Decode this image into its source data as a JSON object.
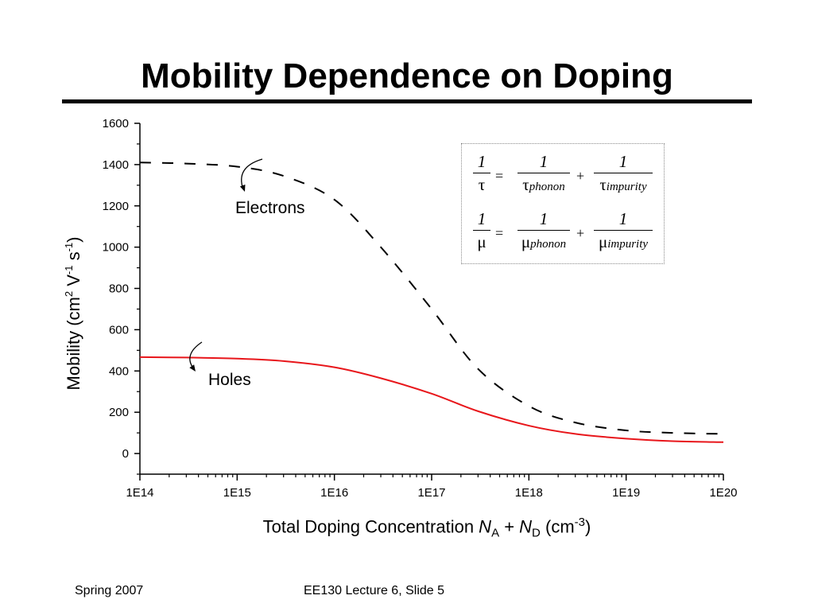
{
  "slide": {
    "title": "Mobility Dependence on Doping",
    "footer_left": "Spring 2007",
    "footer_center": "EE130 Lecture 6, Slide 5"
  },
  "annotations": {
    "electrons": "Electrons",
    "holes": "Holes"
  },
  "axis_titles": {
    "x_main": "Total Doping Concentration ",
    "x_na": "N",
    "x_na_sub": "A",
    "x_plus": " + ",
    "x_nd": "N",
    "x_nd_sub": "D",
    "x_unit": " (cm",
    "x_unit_sup": "-3",
    "x_close": ")",
    "y_main": "Mobility (cm",
    "y_sup2": "2",
    "y_v": " V",
    "y_sup_neg1a": "-1",
    "y_s": " s",
    "y_sup_neg1b": "-1",
    "y_close": ")"
  },
  "formulas": {
    "row1": {
      "lhs_num": "1",
      "lhs_den": "τ",
      "eq": "=",
      "t1_num": "1",
      "t1_den_sym": "τ",
      "t1_den_sub": "phonon",
      "plus": "+",
      "t2_num": "1",
      "t2_den_sym": "τ",
      "t2_den_sub": "impurity"
    },
    "row2": {
      "lhs_num": "1",
      "lhs_den": "μ",
      "eq": "=",
      "t1_num": "1",
      "t1_den_sym": "μ",
      "t1_den_sub": "phonon",
      "plus": "+",
      "t2_num": "1",
      "t2_den_sym": "μ",
      "t2_den_sub": "impurity"
    }
  },
  "colors": {
    "holes": "#e8161b",
    "electrons": "#000000",
    "axis": "#000000"
  },
  "chart_data": {
    "type": "line",
    "x_scale": "log",
    "xlim": [
      100000000000000.0,
      1e+20
    ],
    "ylim": [
      -100,
      1600
    ],
    "x_ticks": [
      100000000000000.0,
      1000000000000000.0,
      1e+16,
      1e+17,
      1e+18,
      1e+19,
      1e+20
    ],
    "x_tick_labels": [
      "1E14",
      "1E15",
      "1E16",
      "1E17",
      "1E18",
      "1E19",
      "1E20"
    ],
    "y_ticks": [
      0,
      200,
      400,
      600,
      800,
      1000,
      1200,
      1400,
      1600
    ],
    "y_tick_labels": [
      "0",
      "200",
      "400",
      "600",
      "800",
      "1000",
      "1200",
      "1400",
      "1600"
    ],
    "grid": false,
    "series": [
      {
        "name": "Electrons",
        "style": "dashed",
        "x": [
          100000000000000.0,
          300000000000000.0,
          1000000000000000.0,
          3000000000000000.0,
          1e+16,
          3e+16,
          1e+17,
          3e+17,
          1e+18,
          3e+18,
          1e+19,
          3e+19,
          1e+20
        ],
        "y": [
          1410,
          1405,
          1390,
          1345,
          1230,
          1000,
          700,
          410,
          230,
          150,
          112,
          100,
          95
        ]
      },
      {
        "name": "Holes",
        "style": "solid",
        "x": [
          100000000000000.0,
          300000000000000.0,
          1000000000000000.0,
          3000000000000000.0,
          1e+16,
          3e+16,
          1e+17,
          3e+17,
          1e+18,
          3e+18,
          1e+19,
          3e+19,
          1e+20
        ],
        "y": [
          467,
          465,
          460,
          448,
          418,
          365,
          290,
          205,
          135,
          95,
          72,
          60,
          55
        ]
      }
    ]
  }
}
